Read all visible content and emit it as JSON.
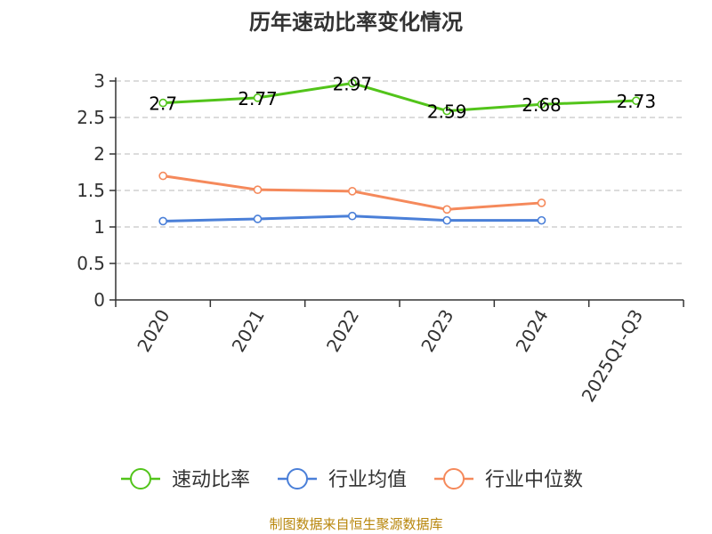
{
  "chart_data": {
    "type": "line",
    "title": "历年速动比率变化情况",
    "categories": [
      "2020",
      "2021",
      "2022",
      "2023",
      "2024",
      "2025Q1-Q3"
    ],
    "ylim": [
      0,
      3
    ],
    "yticks": [
      "0",
      "0.5",
      "1",
      "1.5",
      "2",
      "2.5",
      "3"
    ],
    "grid": "horizontal dashed",
    "legend_position": "bottom",
    "series": [
      {
        "name": "速动比率",
        "color": "#52c41a",
        "values": [
          2.7,
          2.77,
          2.97,
          2.59,
          2.68,
          2.73
        ],
        "labels": [
          "2.7",
          "2.77",
          "2.97",
          "2.59",
          "2.68",
          "2.73"
        ]
      },
      {
        "name": "行业均值",
        "color": "#4a7fd8",
        "values": [
          1.08,
          1.11,
          1.15,
          1.09,
          1.09,
          null
        ]
      },
      {
        "name": "行业中位数",
        "color": "#f5895b",
        "values": [
          1.7,
          1.51,
          1.49,
          1.24,
          1.33,
          null
        ]
      }
    ],
    "source": "制图数据来自恒生聚源数据库"
  }
}
